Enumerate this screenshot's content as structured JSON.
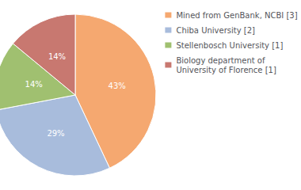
{
  "chart_data": {
    "type": "pie",
    "categories": [
      "Mined from GenBank, NCBI [3]",
      "Chiba University [2]",
      "Stellenbosch University [1]",
      "Biology department of\nUniversity of Florence [1]"
    ],
    "values": [
      43,
      29,
      14,
      14
    ],
    "value_labels": [
      "43%",
      "29%",
      "14%",
      "14%"
    ],
    "colors": [
      "#F5A870",
      "#A8BCDC",
      "#A0C070",
      "#C87870"
    ],
    "data_labels": true,
    "legend": "upper right"
  }
}
